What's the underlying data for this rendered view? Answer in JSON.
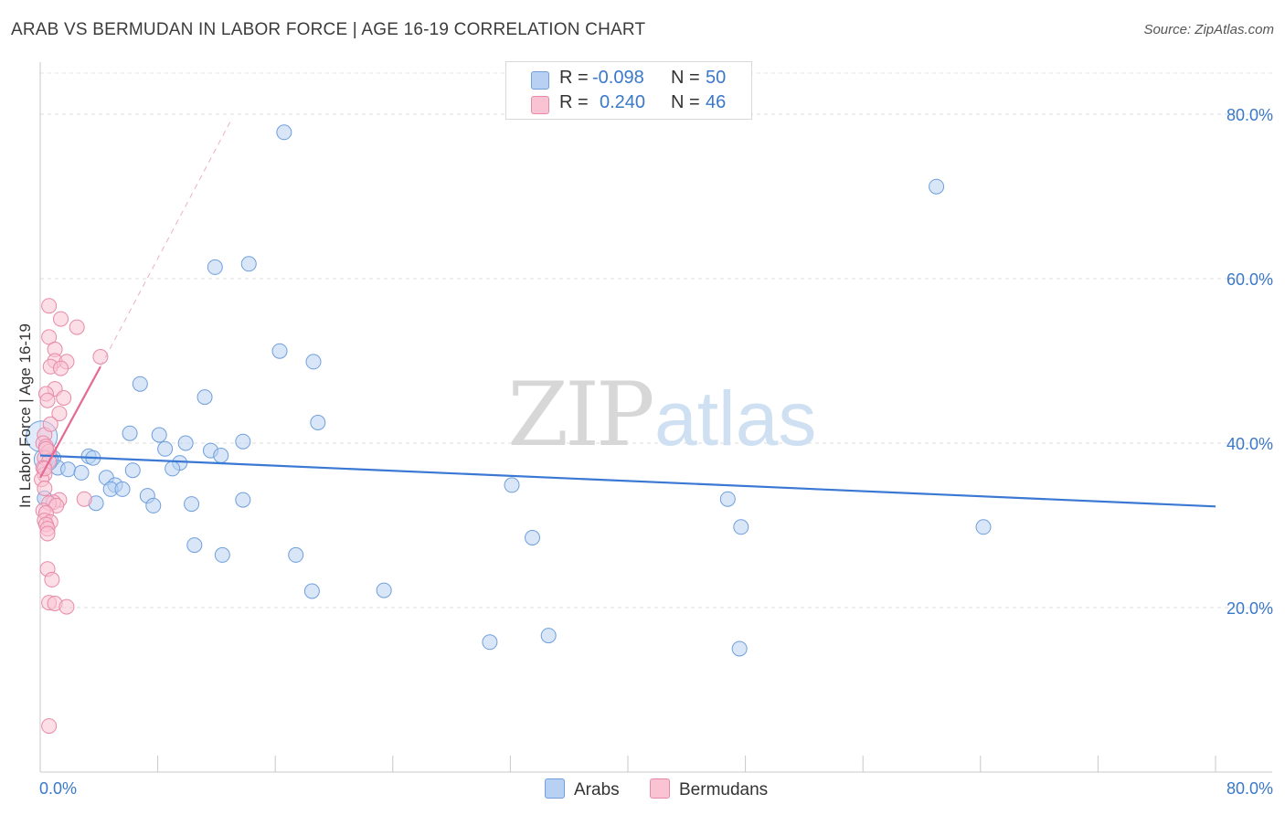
{
  "title": "ARAB VS BERMUDAN IN LABOR FORCE | AGE 16-19 CORRELATION CHART",
  "source": "Source: ZipAtlas.com",
  "watermark": {
    "zip": "ZIP",
    "atlas": "atlas"
  },
  "legend": {
    "rows": [
      {
        "r_label": "R =",
        "r_value": "-0.098",
        "n_label": "N =",
        "n_value": "50",
        "color": "#b8d1f3"
      },
      {
        "r_label": "R =",
        "r_value": "0.240",
        "n_label": "N =",
        "n_value": "46",
        "color": "#f9c3d4"
      }
    ]
  },
  "bottom_legend": [
    {
      "label": "Arabs",
      "color": "#b8d1f3",
      "border": "#6f9fdc"
    },
    {
      "label": "Bermudans",
      "color": "#f9c3d4",
      "border": "#e78aa8"
    }
  ],
  "colors": {
    "arab_fill": "#b8d1f3",
    "arab_stroke": "#6f9fdc",
    "arab_line": "#3a78d4",
    "berm_fill": "#f9c3d4",
    "berm_stroke": "#e78aa8",
    "berm_line": "#e56a93",
    "tick_label": "#3a78c9"
  },
  "chart_data": {
    "type": "scatter",
    "title": "ARAB VS BERMUDAN IN LABOR FORCE | AGE 16-19 CORRELATION CHART",
    "xlabel": "",
    "ylabel": "In Labor Force | Age 16-19",
    "xlim": [
      0,
      80
    ],
    "ylim": [
      0,
      85
    ],
    "x_tick_labels": [
      "0.0%",
      "80.0%"
    ],
    "y_ticks": [
      20,
      40,
      60,
      80
    ],
    "y_tick_labels": [
      "20.0%",
      "40.0%",
      "60.0%",
      "80.0%"
    ],
    "series": [
      {
        "name": "Arabs",
        "points": [
          [
            16.6,
            77.8
          ],
          [
            61.0,
            71.2
          ],
          [
            11.9,
            61.4
          ],
          [
            14.2,
            61.8
          ],
          [
            16.3,
            51.2
          ],
          [
            18.6,
            49.9
          ],
          [
            6.8,
            47.2
          ],
          [
            11.2,
            45.6
          ],
          [
            18.9,
            42.5
          ],
          [
            6.1,
            41.2
          ],
          [
            8.1,
            41.0
          ],
          [
            9.9,
            40.0
          ],
          [
            13.8,
            40.2
          ],
          [
            8.5,
            39.3
          ],
          [
            11.6,
            39.1
          ],
          [
            12.3,
            38.5
          ],
          [
            0.9,
            38.2
          ],
          [
            3.3,
            38.4
          ],
          [
            3.6,
            38.2
          ],
          [
            9.5,
            37.6
          ],
          [
            1.2,
            37.0
          ],
          [
            1.9,
            36.8
          ],
          [
            2.8,
            36.4
          ],
          [
            9.0,
            36.9
          ],
          [
            6.3,
            36.7
          ],
          [
            4.5,
            35.8
          ],
          [
            5.1,
            34.9
          ],
          [
            4.8,
            34.4
          ],
          [
            5.6,
            34.4
          ],
          [
            32.1,
            34.9
          ],
          [
            0.3,
            33.3
          ],
          [
            7.3,
            33.6
          ],
          [
            10.3,
            32.6
          ],
          [
            13.8,
            33.1
          ],
          [
            3.8,
            32.7
          ],
          [
            7.7,
            32.4
          ],
          [
            46.8,
            33.2
          ],
          [
            47.7,
            29.8
          ],
          [
            64.2,
            29.8
          ],
          [
            33.5,
            28.5
          ],
          [
            10.5,
            27.6
          ],
          [
            12.4,
            26.4
          ],
          [
            17.4,
            26.4
          ],
          [
            18.5,
            22.0
          ],
          [
            23.4,
            22.1
          ],
          [
            30.6,
            15.8
          ],
          [
            34.6,
            16.6
          ],
          [
            47.6,
            15.0
          ],
          [
            0.1,
            40.8
          ],
          [
            0.4,
            38.0
          ]
        ],
        "trend": {
          "x": [
            0,
            80
          ],
          "y": [
            38.5,
            32.3
          ]
        }
      },
      {
        "name": "Bermudans",
        "points": [
          [
            0.6,
            56.7
          ],
          [
            1.4,
            55.1
          ],
          [
            2.5,
            54.1
          ],
          [
            0.6,
            52.9
          ],
          [
            1.0,
            51.4
          ],
          [
            4.1,
            50.5
          ],
          [
            1.0,
            50.0
          ],
          [
            1.8,
            49.9
          ],
          [
            0.7,
            49.3
          ],
          [
            1.4,
            49.1
          ],
          [
            1.0,
            46.6
          ],
          [
            0.4,
            46.0
          ],
          [
            1.6,
            45.5
          ],
          [
            0.5,
            45.2
          ],
          [
            1.3,
            43.6
          ],
          [
            0.3,
            41.0
          ],
          [
            0.2,
            40.0
          ],
          [
            0.4,
            39.6
          ],
          [
            0.6,
            39.0
          ],
          [
            0.3,
            38.2
          ],
          [
            0.6,
            37.8
          ],
          [
            0.2,
            37.0
          ],
          [
            0.3,
            36.2
          ],
          [
            0.1,
            35.6
          ],
          [
            0.3,
            34.5
          ],
          [
            1.3,
            33.1
          ],
          [
            0.9,
            32.8
          ],
          [
            3.0,
            33.2
          ],
          [
            0.6,
            32.7
          ],
          [
            1.1,
            32.4
          ],
          [
            0.2,
            31.8
          ],
          [
            0.4,
            31.5
          ],
          [
            0.3,
            30.6
          ],
          [
            0.7,
            30.4
          ],
          [
            0.4,
            30.1
          ],
          [
            0.5,
            29.6
          ],
          [
            0.5,
            29.0
          ],
          [
            0.5,
            24.7
          ],
          [
            0.8,
            23.4
          ],
          [
            0.6,
            20.6
          ],
          [
            1.0,
            20.5
          ],
          [
            1.8,
            20.1
          ],
          [
            0.6,
            5.6
          ],
          [
            0.4,
            39.3
          ],
          [
            0.7,
            42.3
          ],
          [
            0.3,
            36.9
          ]
        ],
        "trend": {
          "x": [
            0,
            4.1
          ],
          "y": [
            35.8,
            49.3
          ]
        },
        "trend_extension": {
          "x": [
            4.1,
            13.0
          ],
          "y": [
            49.3,
            79.3
          ]
        }
      }
    ]
  }
}
